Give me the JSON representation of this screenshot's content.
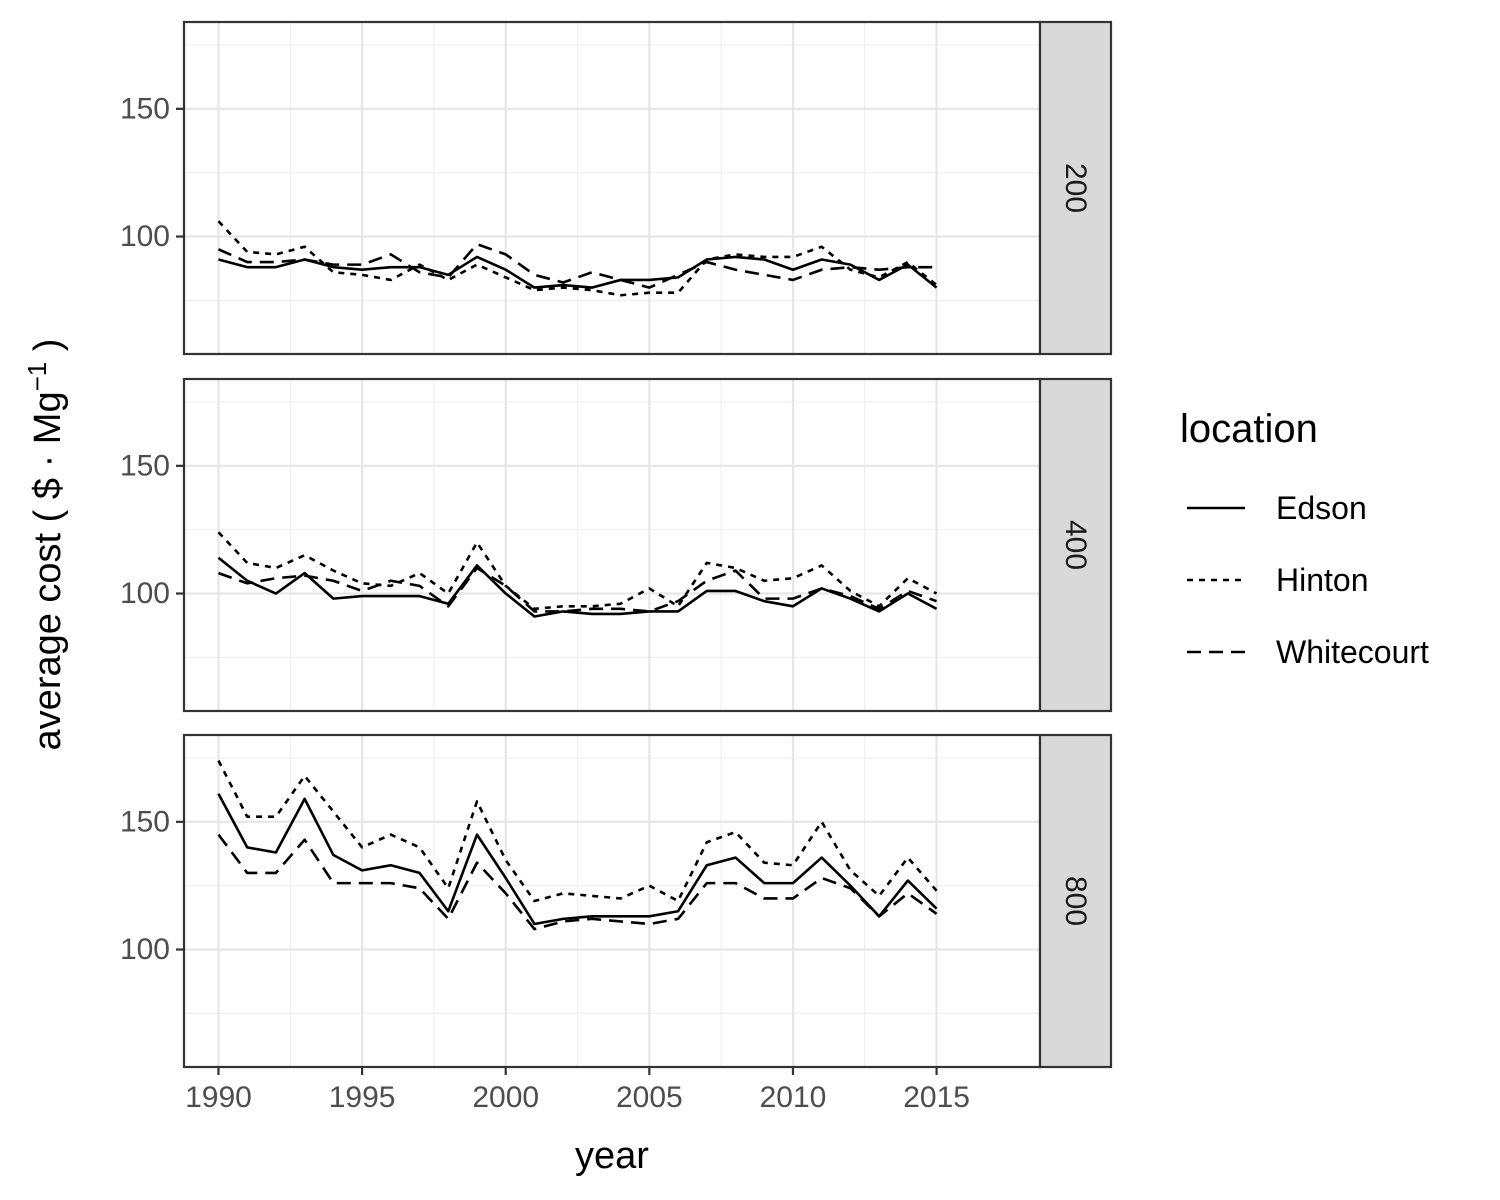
{
  "chart_data": {
    "type": "line",
    "facet_by": "panel",
    "xlabel": "year",
    "ylabel_prefix": "average cost ( $ · Mg",
    "ylabel_sup": "−1",
    "ylabel_suffix": " )",
    "xlim": [
      1988.8,
      2018.6
    ],
    "ylim": [
      54,
      184
    ],
    "x_ticks": [
      1990,
      1995,
      2000,
      2005,
      2010,
      2015
    ],
    "y_ticks": [
      100,
      150
    ],
    "grid": true,
    "legend": {
      "title": "location",
      "position": "right",
      "entries": [
        "Edson",
        "Hinton",
        "Whitecourt"
      ]
    },
    "x": [
      1990,
      1991,
      1992,
      1993,
      1994,
      1995,
      1996,
      1997,
      1998,
      1999,
      2000,
      2001,
      2002,
      2003,
      2004,
      2005,
      2006,
      2007,
      2008,
      2009,
      2010,
      2011,
      2012,
      2013,
      2014,
      2015
    ],
    "panels": [
      {
        "label": "200",
        "series": [
          {
            "name": "Edson",
            "linestyle": "solid",
            "values": [
              91,
              88,
              88,
              91,
              88,
              87,
              88,
              88,
              85,
              92,
              87,
              80,
              81,
              80,
              83,
              83,
              84,
              91,
              92,
              91,
              87,
              91,
              89,
              83,
              89,
              80
            ]
          },
          {
            "name": "Hinton",
            "linestyle": "dotted",
            "values": [
              106,
              94,
              93,
              96,
              86,
              85,
              83,
              89,
              83,
              89,
              84,
              79,
              80,
              79,
              77,
              78,
              78,
              91,
              93,
              92,
              92,
              96,
              87,
              84,
              90,
              81
            ]
          },
          {
            "name": "Whitecourt",
            "linestyle": "dashed",
            "values": [
              95,
              90,
              90,
              91,
              89,
              89,
              93,
              86,
              84,
              97,
              93,
              85,
              82,
              86,
              83,
              80,
              85,
              90,
              87,
              85,
              83,
              87,
              88,
              87,
              88,
              88
            ]
          }
        ]
      },
      {
        "label": "400",
        "series": [
          {
            "name": "Edson",
            "linestyle": "solid",
            "values": [
              114,
              105,
              100,
              108,
              98,
              99,
              99,
              99,
              96,
              111,
              100,
              91,
              93,
              92,
              92,
              93,
              93,
              101,
              101,
              97,
              95,
              102,
              98,
              93,
              100,
              94
            ]
          },
          {
            "name": "Hinton",
            "linestyle": "dotted",
            "values": [
              124,
              112,
              110,
              115,
              109,
              104,
              103,
              108,
              100,
              120,
              103,
              94,
              95,
              95,
              96,
              102,
              95,
              112,
              110,
              105,
              106,
              111,
              101,
              95,
              106,
              100
            ]
          },
          {
            "name": "Whitecourt",
            "linestyle": "dashed",
            "values": [
              108,
              104,
              106,
              107,
              105,
              101,
              105,
              103,
              95,
              110,
              103,
              93,
              93,
              94,
              94,
              93,
              97,
              105,
              109,
              98,
              98,
              102,
              99,
              94,
              101,
              97
            ]
          }
        ]
      },
      {
        "label": "800",
        "series": [
          {
            "name": "Edson",
            "linestyle": "solid",
            "values": [
              161,
              140,
              138,
              159,
              137,
              131,
              133,
              130,
              115,
              145,
              128,
              110,
              112,
              113,
              113,
              113,
              115,
              133,
              136,
              126,
              126,
              136,
              125,
              113,
              127,
              116
            ]
          },
          {
            "name": "Hinton",
            "linestyle": "dotted",
            "values": [
              174,
              152,
              152,
              168,
              154,
              140,
              145,
              140,
              124,
              158,
              135,
              119,
              122,
              121,
              120,
              125,
              119,
              142,
              146,
              134,
              133,
              150,
              131,
              121,
              136,
              123
            ]
          },
          {
            "name": "Whitecourt",
            "linestyle": "dashed",
            "values": [
              145,
              130,
              130,
              143,
              126,
              126,
              126,
              124,
              112,
              134,
              122,
              108,
              111,
              112,
              111,
              110,
              112,
              126,
              126,
              120,
              120,
              128,
              124,
              113,
              122,
              114
            ]
          }
        ]
      }
    ]
  }
}
